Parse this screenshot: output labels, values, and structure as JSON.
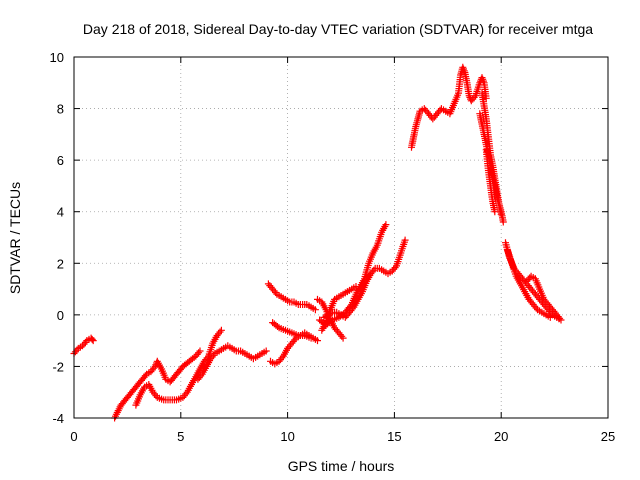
{
  "chart_data": {
    "type": "scatter",
    "title": "Day 218 of 2018, Sidereal Day-to-day VTEC variation (SDTVAR) for receiver mtga",
    "xlabel": "GPS time / hours",
    "ylabel": "SDTVAR / TECUs",
    "xlim": [
      0,
      25
    ],
    "ylim": [
      -4,
      10
    ],
    "xticks": [
      0,
      5,
      10,
      15,
      20,
      25
    ],
    "yticks": [
      -4,
      -2,
      0,
      2,
      4,
      6,
      8,
      10
    ],
    "grid": true,
    "marker": "+",
    "color": "#ff0000",
    "series": [
      {
        "name": "SDTVAR",
        "segments": [
          [
            [
              0.0,
              -1.5
            ],
            [
              0.2,
              -1.3
            ],
            [
              0.4,
              -1.2
            ],
            [
              0.6,
              -1.0
            ],
            [
              0.8,
              -0.9
            ],
            [
              0.9,
              -1.0
            ]
          ],
          [
            [
              1.9,
              -4.0
            ],
            [
              2.2,
              -3.5
            ],
            [
              2.5,
              -3.2
            ],
            [
              2.8,
              -2.9
            ],
            [
              3.1,
              -2.6
            ],
            [
              3.4,
              -2.3
            ],
            [
              3.6,
              -2.2
            ],
            [
              3.8,
              -2.0
            ],
            [
              3.9,
              -1.8
            ],
            [
              4.1,
              -2.1
            ],
            [
              4.3,
              -2.5
            ],
            [
              4.5,
              -2.6
            ],
            [
              4.8,
              -2.3
            ],
            [
              5.1,
              -2.0
            ],
            [
              5.4,
              -1.8
            ],
            [
              5.7,
              -1.6
            ],
            [
              5.9,
              -1.4
            ]
          ],
          [
            [
              2.9,
              -3.5
            ],
            [
              3.1,
              -3.1
            ],
            [
              3.3,
              -2.8
            ],
            [
              3.5,
              -2.7
            ],
            [
              3.7,
              -3.0
            ],
            [
              3.9,
              -3.2
            ],
            [
              4.2,
              -3.3
            ],
            [
              4.5,
              -3.3
            ],
            [
              4.8,
              -3.3
            ],
            [
              5.1,
              -3.2
            ],
            [
              5.3,
              -3.0
            ],
            [
              5.5,
              -2.7
            ],
            [
              5.7,
              -2.4
            ],
            [
              5.9,
              -2.1
            ],
            [
              6.1,
              -1.8
            ],
            [
              6.3,
              -1.6
            ],
            [
              6.5,
              -1.1
            ],
            [
              6.7,
              -0.8
            ],
            [
              6.9,
              -0.6
            ]
          ],
          [
            [
              5.8,
              -2.5
            ],
            [
              6.0,
              -2.3
            ],
            [
              6.2,
              -2.0
            ],
            [
              6.4,
              -1.7
            ],
            [
              6.6,
              -1.5
            ],
            [
              6.8,
              -1.4
            ],
            [
              7.0,
              -1.3
            ],
            [
              7.2,
              -1.2
            ],
            [
              7.4,
              -1.3
            ],
            [
              7.6,
              -1.4
            ],
            [
              7.8,
              -1.4
            ],
            [
              8.0,
              -1.5
            ],
            [
              8.2,
              -1.6
            ],
            [
              8.4,
              -1.7
            ],
            [
              8.6,
              -1.6
            ],
            [
              8.8,
              -1.5
            ],
            [
              9.0,
              -1.4
            ]
          ],
          [
            [
              9.1,
              1.2
            ],
            [
              9.3,
              1.0
            ],
            [
              9.5,
              0.8
            ],
            [
              9.7,
              0.7
            ],
            [
              9.9,
              0.6
            ],
            [
              10.1,
              0.5
            ],
            [
              10.3,
              0.5
            ],
            [
              10.5,
              0.4
            ],
            [
              10.7,
              0.4
            ],
            [
              10.9,
              0.4
            ],
            [
              11.1,
              0.3
            ],
            [
              11.3,
              0.2
            ]
          ],
          [
            [
              9.2,
              -1.8
            ],
            [
              9.4,
              -1.9
            ],
            [
              9.6,
              -1.8
            ],
            [
              9.8,
              -1.6
            ],
            [
              10.0,
              -1.3
            ],
            [
              10.2,
              -1.1
            ],
            [
              10.4,
              -0.9
            ],
            [
              10.6,
              -0.8
            ],
            [
              10.8,
              -0.7
            ],
            [
              11.0,
              -0.8
            ],
            [
              11.2,
              -0.9
            ],
            [
              11.4,
              -1.0
            ]
          ],
          [
            [
              9.3,
              -0.3
            ],
            [
              9.6,
              -0.5
            ],
            [
              9.9,
              -0.6
            ],
            [
              10.2,
              -0.7
            ],
            [
              10.5,
              -0.8
            ],
            [
              10.8,
              -0.8
            ],
            [
              11.1,
              -0.9
            ]
          ],
          [
            [
              11.4,
              0.6
            ],
            [
              11.6,
              0.5
            ],
            [
              11.8,
              0.2
            ],
            [
              12.0,
              -0.2
            ],
            [
              12.2,
              -0.5
            ],
            [
              12.4,
              -0.7
            ],
            [
              12.6,
              -0.9
            ]
          ],
          [
            [
              11.6,
              -0.6
            ],
            [
              11.8,
              -0.3
            ],
            [
              12.0,
              0.2
            ],
            [
              12.2,
              0.6
            ],
            [
              12.4,
              0.7
            ],
            [
              12.6,
              0.8
            ],
            [
              12.8,
              0.9
            ],
            [
              13.0,
              1.0
            ],
            [
              13.2,
              1.1
            ]
          ],
          [
            [
              11.7,
              -0.1
            ],
            [
              11.9,
              0.0
            ],
            [
              12.1,
              0.1
            ],
            [
              12.3,
              0.1
            ],
            [
              12.5,
              0.0
            ],
            [
              12.7,
              -0.1
            ],
            [
              12.9,
              0.1
            ],
            [
              13.1,
              0.3
            ],
            [
              13.3,
              0.6
            ],
            [
              13.5,
              0.9
            ],
            [
              13.7,
              1.3
            ],
            [
              13.9,
              1.6
            ],
            [
              14.1,
              1.8
            ],
            [
              14.3,
              1.8
            ],
            [
              14.5,
              1.7
            ],
            [
              14.7,
              1.6
            ],
            [
              14.9,
              1.7
            ],
            [
              15.1,
              1.9
            ],
            [
              15.3,
              2.4
            ],
            [
              15.5,
              2.9
            ]
          ],
          [
            [
              11.5,
              -0.2
            ],
            [
              11.8,
              -0.4
            ],
            [
              12.1,
              -0.2
            ],
            [
              12.4,
              -0.1
            ],
            [
              12.7,
              0.1
            ],
            [
              13.0,
              0.4
            ],
            [
              13.2,
              0.8
            ],
            [
              13.4,
              1.1
            ],
            [
              13.6,
              1.4
            ],
            [
              13.8,
              2.0
            ],
            [
              14.0,
              2.4
            ],
            [
              14.2,
              2.7
            ],
            [
              14.4,
              3.2
            ],
            [
              14.6,
              3.5
            ]
          ],
          [
            [
              15.8,
              6.5
            ],
            [
              15.9,
              6.9
            ],
            [
              16.0,
              7.3
            ],
            [
              16.1,
              7.6
            ],
            [
              16.2,
              7.9
            ],
            [
              16.4,
              8.0
            ],
            [
              16.6,
              7.8
            ],
            [
              16.8,
              7.6
            ],
            [
              17.0,
              7.8
            ],
            [
              17.2,
              8.0
            ],
            [
              17.4,
              7.9
            ],
            [
              17.6,
              7.8
            ],
            [
              17.8,
              8.2
            ],
            [
              18.0,
              8.6
            ],
            [
              18.1,
              9.3
            ],
            [
              18.2,
              9.6
            ],
            [
              18.3,
              9.4
            ],
            [
              18.4,
              9.0
            ],
            [
              18.5,
              8.5
            ],
            [
              18.6,
              8.3
            ],
            [
              18.8,
              8.5
            ],
            [
              19.0,
              9.0
            ],
            [
              19.1,
              9.2
            ],
            [
              19.2,
              9.0
            ],
            [
              19.3,
              8.4
            ]
          ],
          [
            [
              19.0,
              7.8
            ],
            [
              19.1,
              7.4
            ],
            [
              19.2,
              7.0
            ],
            [
              19.3,
              6.6
            ],
            [
              19.4,
              6.2
            ],
            [
              19.5,
              5.8
            ],
            [
              19.6,
              5.4
            ],
            [
              19.7,
              5.0
            ],
            [
              19.8,
              4.6
            ],
            [
              19.9,
              4.3
            ],
            [
              20.0,
              3.9
            ]
          ],
          [
            [
              19.1,
              8.6
            ],
            [
              19.2,
              8.1
            ],
            [
              19.3,
              7.6
            ],
            [
              19.4,
              6.9
            ],
            [
              19.5,
              6.2
            ],
            [
              19.6,
              5.8
            ],
            [
              19.7,
              5.3
            ],
            [
              19.8,
              4.8
            ],
            [
              19.9,
              4.3
            ],
            [
              20.0,
              4.0
            ],
            [
              20.1,
              3.6
            ]
          ],
          [
            [
              19.3,
              6.4
            ],
            [
              19.4,
              5.6
            ],
            [
              19.5,
              5.0
            ],
            [
              19.6,
              4.4
            ],
            [
              19.7,
              4.0
            ]
          ],
          [
            [
              20.2,
              2.8
            ],
            [
              20.4,
              2.2
            ],
            [
              20.6,
              1.8
            ],
            [
              20.8,
              1.6
            ],
            [
              21.0,
              1.4
            ],
            [
              21.2,
              1.2
            ],
            [
              21.4,
              1.0
            ],
            [
              21.6,
              0.8
            ],
            [
              21.8,
              0.6
            ],
            [
              22.0,
              0.4
            ],
            [
              22.2,
              0.2
            ],
            [
              22.4,
              0.0
            ],
            [
              22.6,
              -0.1
            ],
            [
              22.8,
              -0.2
            ]
          ],
          [
            [
              20.3,
              2.5
            ],
            [
              20.5,
              2.0
            ],
            [
              20.7,
              1.5
            ],
            [
              20.9,
              1.2
            ],
            [
              21.1,
              0.9
            ],
            [
              21.3,
              0.6
            ],
            [
              21.5,
              0.4
            ],
            [
              21.7,
              0.2
            ],
            [
              21.9,
              0.1
            ],
            [
              22.1,
              0.0
            ],
            [
              22.3,
              -0.1
            ]
          ],
          [
            [
              21.2,
              1.3
            ],
            [
              21.4,
              1.5
            ],
            [
              21.6,
              1.4
            ],
            [
              21.8,
              1.0
            ],
            [
              22.0,
              0.6
            ],
            [
              22.2,
              0.4
            ],
            [
              22.4,
              0.2
            ],
            [
              22.6,
              0.0
            ],
            [
              22.8,
              -0.2
            ]
          ]
        ]
      }
    ]
  }
}
